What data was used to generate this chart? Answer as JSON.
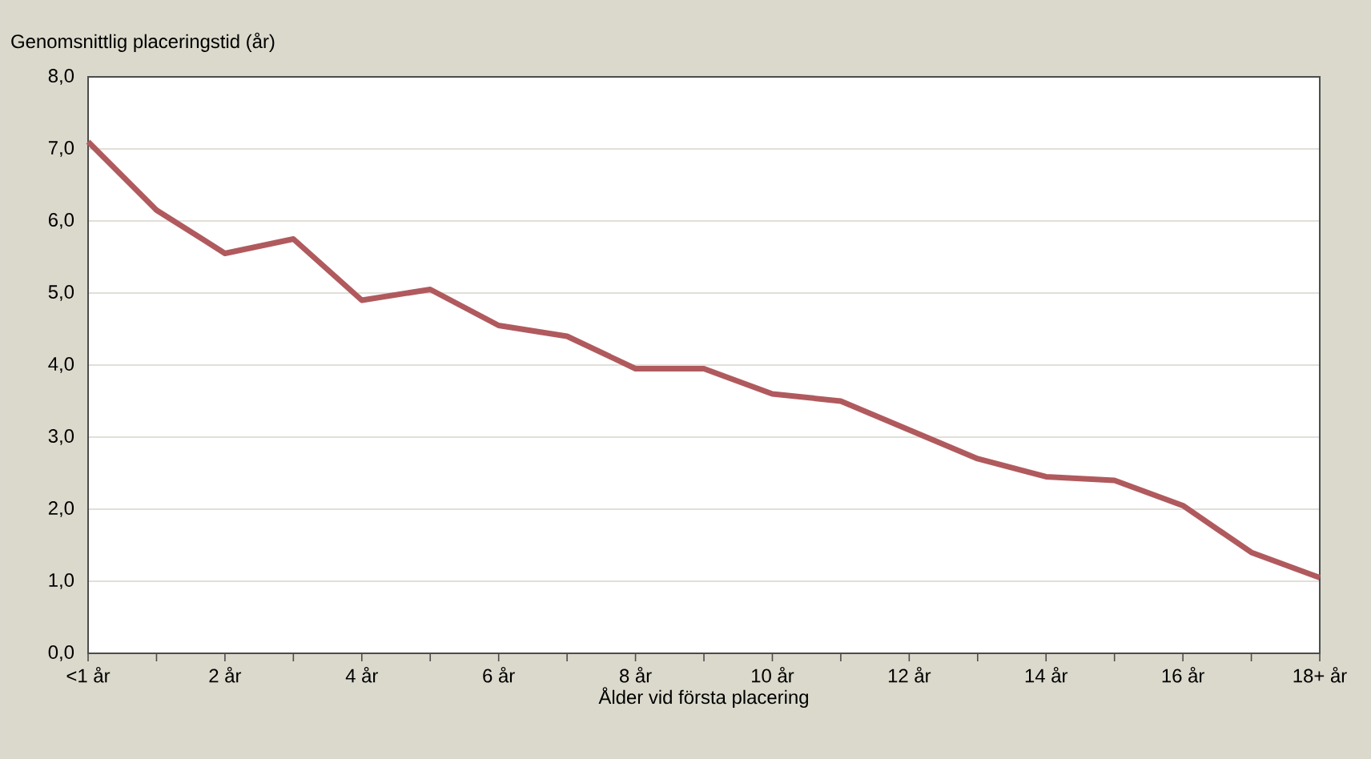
{
  "chart_data": {
    "type": "line",
    "ylabel": "Genomsnittlig placeringstid (år)",
    "xlabel": "Ålder vid första placering",
    "categories": [
      "<1 år",
      null,
      "2 år",
      null,
      "4 år",
      null,
      "6 år",
      null,
      "8 år",
      null,
      "10 år",
      null,
      "12 år",
      null,
      "14 år",
      null,
      "16 år",
      null,
      "18+ år"
    ],
    "series": [
      {
        "color": "#b05a5e",
        "values": [
          7.1,
          6.15,
          5.55,
          5.75,
          4.9,
          5.05,
          4.55,
          4.4,
          3.95,
          3.95,
          3.6,
          3.5,
          3.1,
          2.7,
          2.45,
          2.4,
          2.05,
          1.4,
          1.05
        ]
      }
    ],
    "ylim": [
      0,
      8
    ],
    "yticks": [
      {
        "value": 0,
        "label": "0,0"
      },
      {
        "value": 1,
        "label": "1,0"
      },
      {
        "value": 2,
        "label": "2,0"
      },
      {
        "value": 3,
        "label": "3,0"
      },
      {
        "value": 4,
        "label": "4,0"
      },
      {
        "value": 5,
        "label": "5,0"
      },
      {
        "value": 6,
        "label": "6,0"
      },
      {
        "value": 7,
        "label": "7,0"
      },
      {
        "value": 8,
        "label": "8,0"
      }
    ],
    "grid": "y",
    "marker": "none",
    "line_style": "solid"
  }
}
